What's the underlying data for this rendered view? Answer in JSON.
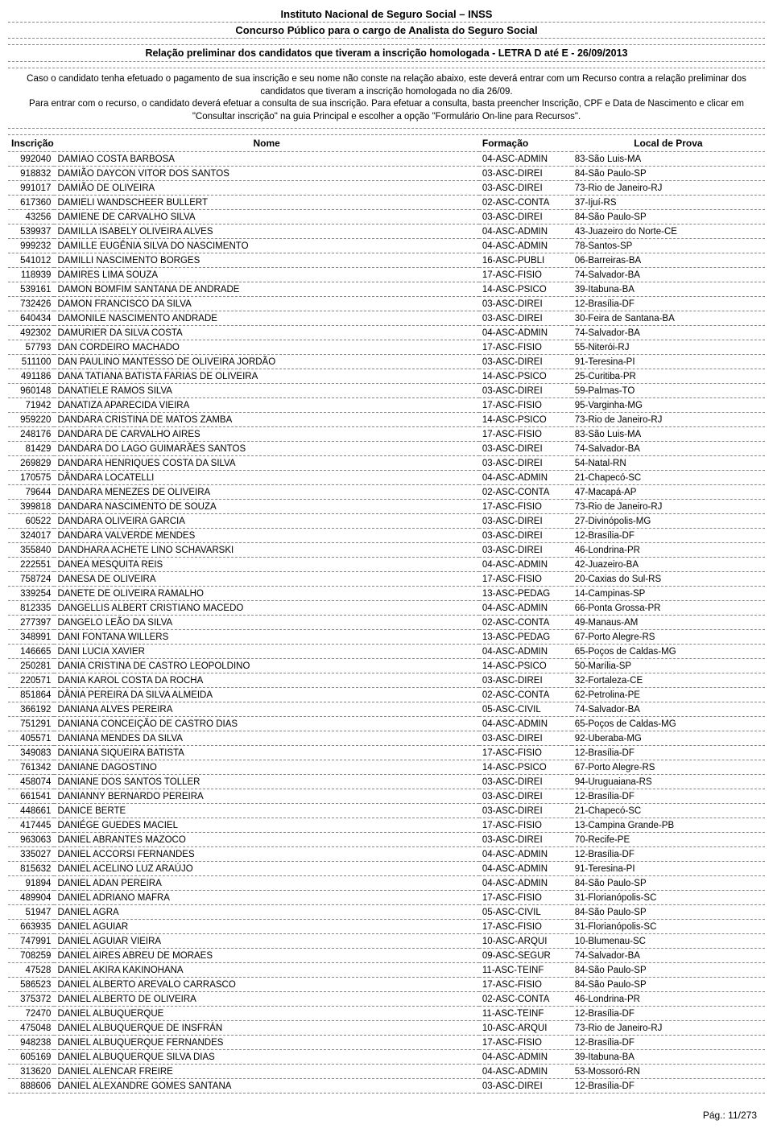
{
  "header": {
    "title": "Instituto Nacional de Seguro Social – INSS",
    "subtitle": "Concurso Público para o cargo de Analista do Seguro Social",
    "relation": "Relação preliminar dos candidatos que tiveram a inscrição homologada - LETRA D até E - 26/09/2013"
  },
  "notice": {
    "p1": "Caso o candidato tenha efetuado o pagamento de sua inscrição e seu nome não conste na relação abaixo, este deverá entrar com um Recurso contra a relação preliminar dos candidatos que tiveram a inscrição homologada no dia 26/09.",
    "p2": "Para entrar com o recurso, o candidato deverá efetuar a consulta de sua inscrição. Para efetuar a consulta, basta preencher Inscrição, CPF e Data de Nascimento e clicar em \"Consultar inscrição\" na guia Principal e escolher a opção \"Formulário On-line para Recursos\"."
  },
  "columns": {
    "inscricao": "Inscrição",
    "nome": "Nome",
    "formacao": "Formação",
    "local": "Local de Prova"
  },
  "rows": [
    {
      "i": "992040",
      "n": "DAMIAO COSTA BARBOSA",
      "f": "04-ASC-ADMIN",
      "l": "83-São Luis-MA"
    },
    {
      "i": "918832",
      "n": "DAMIÃO DAYCON VITOR DOS SANTOS",
      "f": "03-ASC-DIREI",
      "l": "84-São Paulo-SP"
    },
    {
      "i": "991017",
      "n": "DAMIÃO DE OLIVEIRA",
      "f": "03-ASC-DIREI",
      "l": "73-Rio de Janeiro-RJ"
    },
    {
      "i": "617360",
      "n": "DAMIELI WANDSCHEER BULLERT",
      "f": "02-ASC-CONTA",
      "l": "37-Ijuí-RS"
    },
    {
      "i": "43256",
      "n": "DAMIENE DE CARVALHO SILVA",
      "f": "03-ASC-DIREI",
      "l": "84-São Paulo-SP"
    },
    {
      "i": "539937",
      "n": "DAMILLA ISABELY OLIVEIRA ALVES",
      "f": "04-ASC-ADMIN",
      "l": "43-Juazeiro do Norte-CE"
    },
    {
      "i": "999232",
      "n": "DAMILLE EUGÊNIA SILVA DO NASCIMENTO",
      "f": "04-ASC-ADMIN",
      "l": "78-Santos-SP"
    },
    {
      "i": "541012",
      "n": "DAMILLI NASCIMENTO BORGES",
      "f": "16-ASC-PUBLI",
      "l": "06-Barreiras-BA"
    },
    {
      "i": "118939",
      "n": "DAMIRES LIMA SOUZA",
      "f": "17-ASC-FISIO",
      "l": "74-Salvador-BA"
    },
    {
      "i": "539161",
      "n": "DAMON BOMFIM SANTANA DE ANDRADE",
      "f": "14-ASC-PSICO",
      "l": "39-Itabuna-BA"
    },
    {
      "i": "732426",
      "n": "DAMON FRANCISCO DA SILVA",
      "f": "03-ASC-DIREI",
      "l": "12-Brasília-DF"
    },
    {
      "i": "640434",
      "n": "DAMONILE NASCIMENTO ANDRADE",
      "f": "03-ASC-DIREI",
      "l": "30-Feira de Santana-BA"
    },
    {
      "i": "492302",
      "n": "DAMURIER DA SILVA COSTA",
      "f": "04-ASC-ADMIN",
      "l": "74-Salvador-BA"
    },
    {
      "i": "57793",
      "n": "DAN CORDEIRO MACHADO",
      "f": "17-ASC-FISIO",
      "l": "55-Niterói-RJ"
    },
    {
      "i": "511100",
      "n": "DAN PAULINO MANTESSO DE OLIVEIRA JORDÃO",
      "f": "03-ASC-DIREI",
      "l": "91-Teresina-PI"
    },
    {
      "i": "491186",
      "n": "DANA TATIANA BATISTA FARIAS DE OLIVEIRA",
      "f": "14-ASC-PSICO",
      "l": "25-Curitiba-PR"
    },
    {
      "i": "960148",
      "n": "DANATIELE RAMOS SILVA",
      "f": "03-ASC-DIREI",
      "l": "59-Palmas-TO"
    },
    {
      "i": "71942",
      "n": "DANATIZA APARECIDA VIEIRA",
      "f": "17-ASC-FISIO",
      "l": "95-Varginha-MG"
    },
    {
      "i": "959220",
      "n": "DANDARA CRISTINA DE MATOS ZAMBA",
      "f": "14-ASC-PSICO",
      "l": "73-Rio de Janeiro-RJ"
    },
    {
      "i": "248176",
      "n": "DANDARA DE CARVALHO AIRES",
      "f": "17-ASC-FISIO",
      "l": "83-São Luis-MA"
    },
    {
      "i": "81429",
      "n": "DANDARA DO LAGO GUIMARÃES SANTOS",
      "f": "03-ASC-DIREI",
      "l": "74-Salvador-BA"
    },
    {
      "i": "269829",
      "n": "DANDARA HENRIQUES COSTA DA SILVA",
      "f": "03-ASC-DIREI",
      "l": "54-Natal-RN"
    },
    {
      "i": "170575",
      "n": "DÂNDARA LOCATELLI",
      "f": "04-ASC-ADMIN",
      "l": "21-Chapecó-SC"
    },
    {
      "i": "79644",
      "n": "DANDARA MENEZES DE OLIVEIRA",
      "f": "02-ASC-CONTA",
      "l": "47-Macapá-AP"
    },
    {
      "i": "399818",
      "n": "DANDARA NASCIMENTO DE SOUZA",
      "f": "17-ASC-FISIO",
      "l": "73-Rio de Janeiro-RJ"
    },
    {
      "i": "60522",
      "n": "DANDARA OLIVEIRA GARCIA",
      "f": "03-ASC-DIREI",
      "l": "27-Divinópolis-MG"
    },
    {
      "i": "324017",
      "n": "DANDARA VALVERDE MENDES",
      "f": "03-ASC-DIREI",
      "l": "12-Brasília-DF"
    },
    {
      "i": "355840",
      "n": "DANDHARA ACHETE LINO SCHAVARSKI",
      "f": "03-ASC-DIREI",
      "l": "46-Londrina-PR"
    },
    {
      "i": "222551",
      "n": "DANEA MESQUITA REIS",
      "f": "04-ASC-ADMIN",
      "l": "42-Juazeiro-BA"
    },
    {
      "i": "758724",
      "n": "DANESA DE OLIVEIRA",
      "f": "17-ASC-FISIO",
      "l": "20-Caxias do Sul-RS"
    },
    {
      "i": "339254",
      "n": "DANETE DE OLIVEIRA RAMALHO",
      "f": "13-ASC-PEDAG",
      "l": "14-Campinas-SP"
    },
    {
      "i": "812335",
      "n": "DANGELLIS ALBERT CRISTIANO MACEDO",
      "f": "04-ASC-ADMIN",
      "l": "66-Ponta Grossa-PR"
    },
    {
      "i": "277397",
      "n": "DANGELO LEÃO DA SILVA",
      "f": "02-ASC-CONTA",
      "l": "49-Manaus-AM"
    },
    {
      "i": "348991",
      "n": "DANI FONTANA WILLERS",
      "f": "13-ASC-PEDAG",
      "l": "67-Porto Alegre-RS"
    },
    {
      "i": "146665",
      "n": "DANI LUCIA XAVIER",
      "f": "04-ASC-ADMIN",
      "l": "65-Poços de Caldas-MG"
    },
    {
      "i": "250281",
      "n": "DANIA CRISTINA DE CASTRO LEOPOLDINO",
      "f": "14-ASC-PSICO",
      "l": "50-Marília-SP"
    },
    {
      "i": "220571",
      "n": "DANIA KAROL COSTA DA ROCHA",
      "f": "03-ASC-DIREI",
      "l": "32-Fortaleza-CE"
    },
    {
      "i": "851864",
      "n": "DÂNIA PEREIRA DA SILVA ALMEIDA",
      "f": "02-ASC-CONTA",
      "l": "62-Petrolina-PE"
    },
    {
      "i": "366192",
      "n": "DANIANA ALVES PEREIRA",
      "f": "05-ASC-CIVIL",
      "l": "74-Salvador-BA"
    },
    {
      "i": "751291",
      "n": "DANIANA CONCEIÇÃO DE CASTRO DIAS",
      "f": "04-ASC-ADMIN",
      "l": "65-Poços de Caldas-MG"
    },
    {
      "i": "405571",
      "n": "DANIANA MENDES DA SILVA",
      "f": "03-ASC-DIREI",
      "l": "92-Uberaba-MG"
    },
    {
      "i": "349083",
      "n": "DANIANA SIQUEIRA BATISTA",
      "f": "17-ASC-FISIO",
      "l": "12-Brasília-DF"
    },
    {
      "i": "761342",
      "n": "DANIANE DAGOSTINO",
      "f": "14-ASC-PSICO",
      "l": "67-Porto Alegre-RS"
    },
    {
      "i": "458074",
      "n": "DANIANE DOS SANTOS TOLLER",
      "f": "03-ASC-DIREI",
      "l": "94-Uruguaiana-RS"
    },
    {
      "i": "661541",
      "n": "DANIANNY BERNARDO PEREIRA",
      "f": "03-ASC-DIREI",
      "l": "12-Brasília-DF"
    },
    {
      "i": "448661",
      "n": "DANICE BERTE",
      "f": "03-ASC-DIREI",
      "l": "21-Chapecó-SC"
    },
    {
      "i": "417445",
      "n": "DANIÉGE GUEDES MACIEL",
      "f": "17-ASC-FISIO",
      "l": "13-Campina Grande-PB"
    },
    {
      "i": "963063",
      "n": "DANIEL ABRANTES MAZOCO",
      "f": "03-ASC-DIREI",
      "l": "70-Recife-PE"
    },
    {
      "i": "335027",
      "n": "DANIEL ACCORSI FERNANDES",
      "f": "04-ASC-ADMIN",
      "l": "12-Brasília-DF"
    },
    {
      "i": "815632",
      "n": "DANIEL ACELINO LUZ ARAÚJO",
      "f": "04-ASC-ADMIN",
      "l": "91-Teresina-PI"
    },
    {
      "i": "91894",
      "n": "DANIEL ADAN PEREIRA",
      "f": "04-ASC-ADMIN",
      "l": "84-São Paulo-SP"
    },
    {
      "i": "489904",
      "n": "DANIEL ADRIANO MAFRA",
      "f": "17-ASC-FISIO",
      "l": "31-Florianópolis-SC"
    },
    {
      "i": "51947",
      "n": "DANIEL AGRA",
      "f": "05-ASC-CIVIL",
      "l": "84-São Paulo-SP"
    },
    {
      "i": "663935",
      "n": "DANIEL AGUIAR",
      "f": "17-ASC-FISIO",
      "l": "31-Florianópolis-SC"
    },
    {
      "i": "747991",
      "n": "DANIEL AGUIAR VIEIRA",
      "f": "10-ASC-ARQUI",
      "l": "10-Blumenau-SC"
    },
    {
      "i": "708259",
      "n": "DANIEL AIRES ABREU DE MORAES",
      "f": "09-ASC-SEGUR",
      "l": "74-Salvador-BA"
    },
    {
      "i": "47528",
      "n": "DANIEL AKIRA KAKINOHANA",
      "f": "11-ASC-TEINF",
      "l": "84-São Paulo-SP"
    },
    {
      "i": "586523",
      "n": "DANIEL ALBERTO AREVALO CARRASCO",
      "f": "17-ASC-FISIO",
      "l": "84-São Paulo-SP"
    },
    {
      "i": "375372",
      "n": "DANIEL ALBERTO DE OLIVEIRA",
      "f": "02-ASC-CONTA",
      "l": "46-Londrina-PR"
    },
    {
      "i": "72470",
      "n": "DANIEL ALBUQUERQUE",
      "f": "11-ASC-TEINF",
      "l": "12-Brasília-DF"
    },
    {
      "i": "475048",
      "n": "DANIEL ALBUQUERQUE DE INSFRÁN",
      "f": "10-ASC-ARQUI",
      "l": "73-Rio de Janeiro-RJ"
    },
    {
      "i": "948238",
      "n": "DANIEL ALBUQUERQUE FERNANDES",
      "f": "17-ASC-FISIO",
      "l": "12-Brasília-DF"
    },
    {
      "i": "605169",
      "n": "DANIEL ALBUQUERQUE SILVA DIAS",
      "f": "04-ASC-ADMIN",
      "l": "39-Itabuna-BA"
    },
    {
      "i": "313620",
      "n": "DANIEL ALENCAR FREIRE",
      "f": "04-ASC-ADMIN",
      "l": "53-Mossoró-RN"
    },
    {
      "i": "888606",
      "n": "DANIEL ALEXANDRE GOMES SANTANA",
      "f": "03-ASC-DIREI",
      "l": "12-Brasília-DF"
    }
  ],
  "footer": "Pág.: 11/273",
  "style": {
    "fontsize_body": 11.5,
    "fontsize_header": 13,
    "border_color": "#888888",
    "text_color": "#000000",
    "background": "#ffffff"
  }
}
